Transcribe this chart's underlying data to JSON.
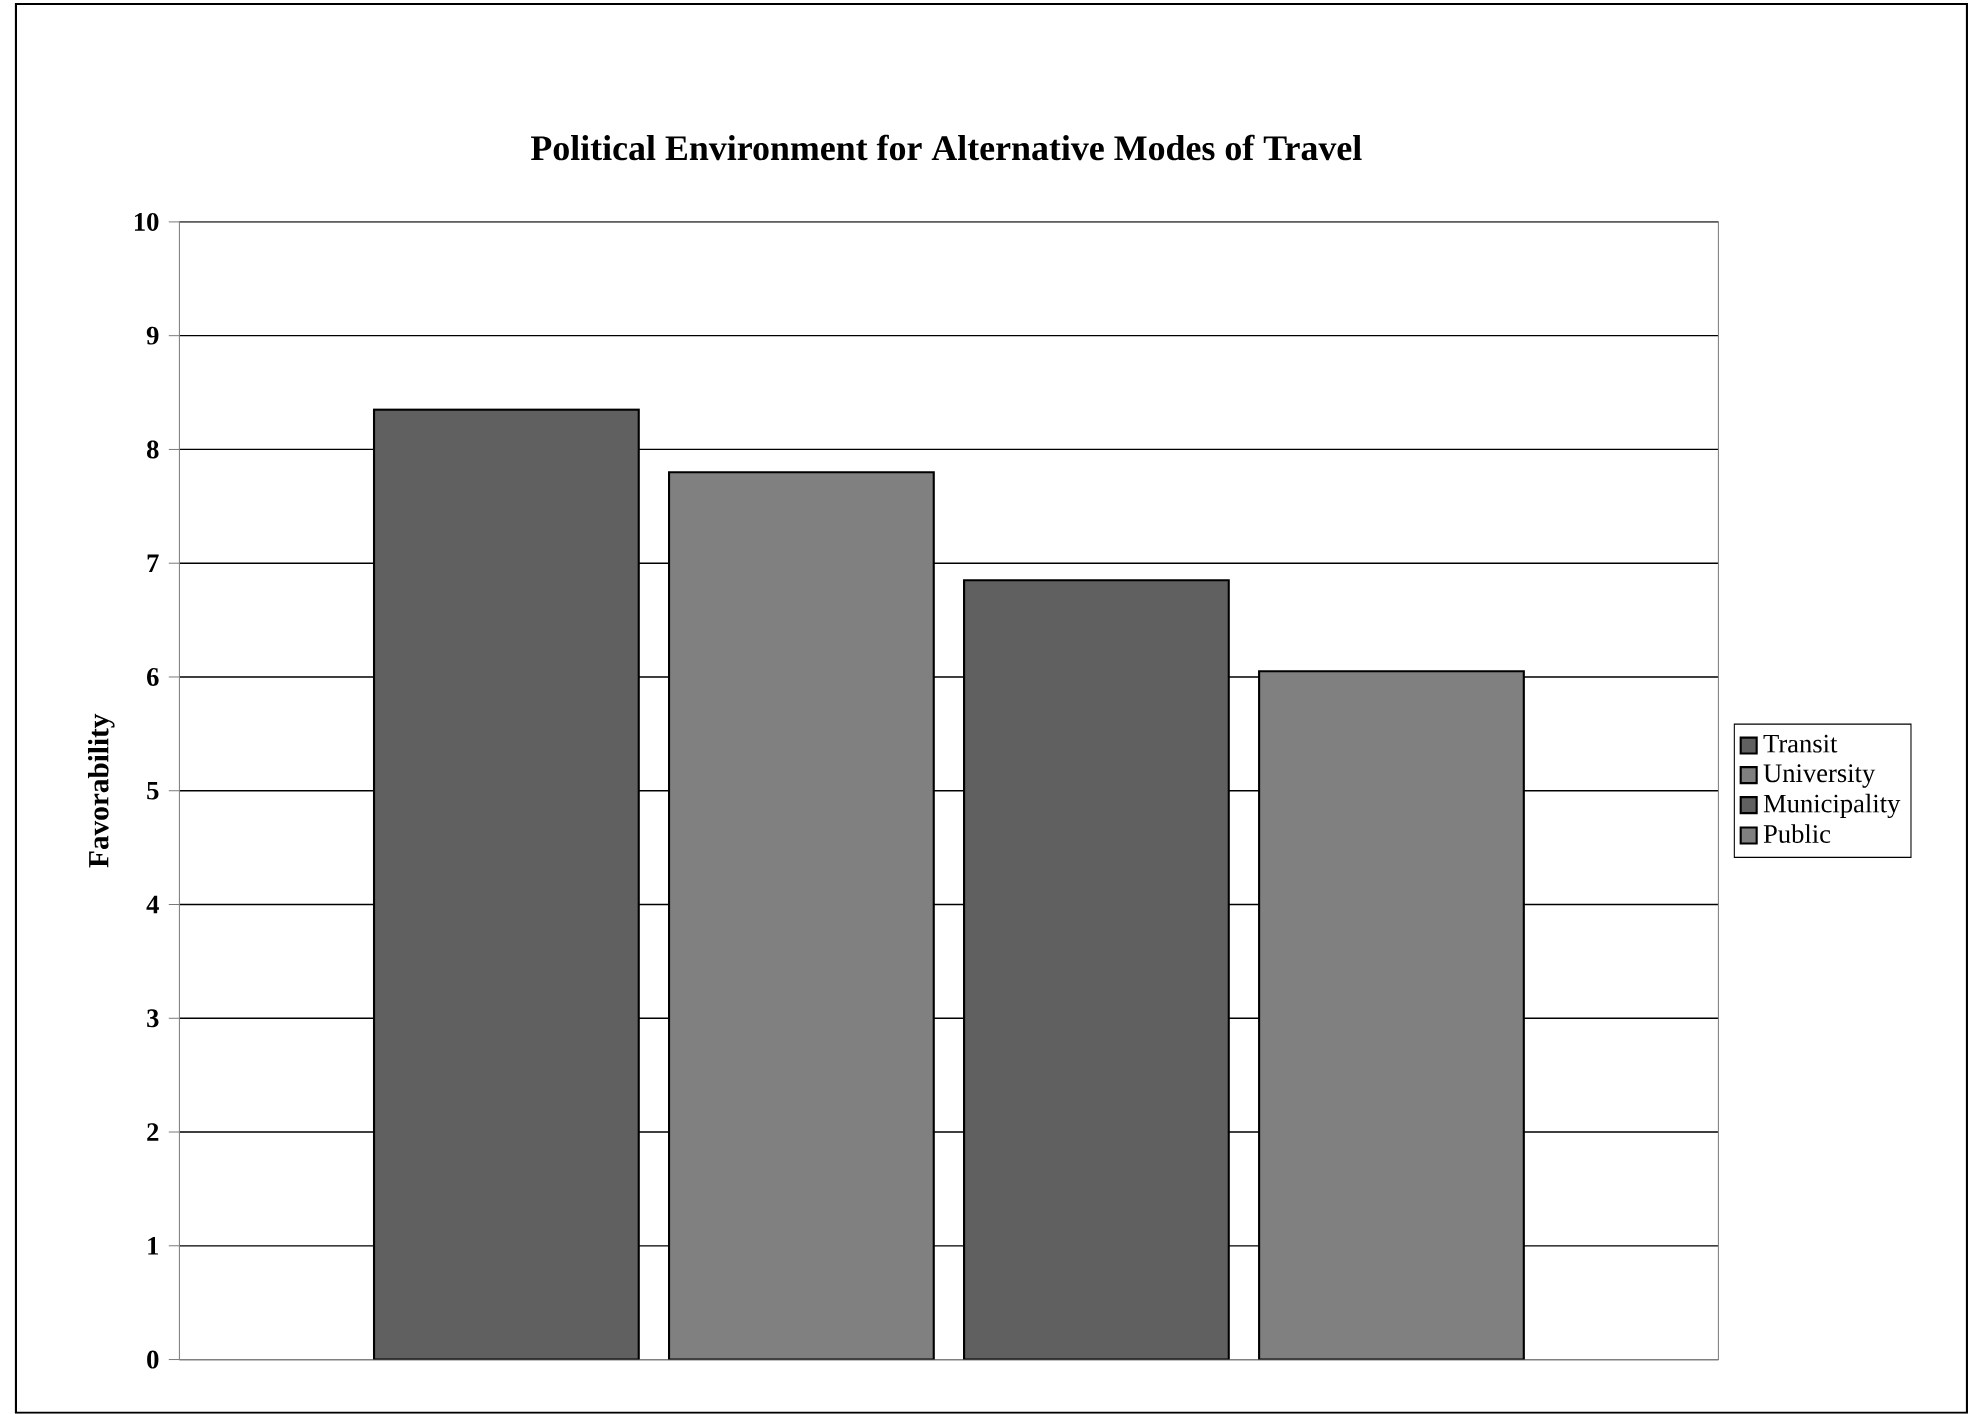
{
  "chart_data": {
    "type": "bar",
    "title": "Political Environment for Alternative Modes of Travel",
    "ylabel": "Favorability",
    "categories": [
      null
    ],
    "series": [
      {
        "name": "Transit",
        "color": "#606060",
        "values": [
          8.35
        ]
      },
      {
        "name": "University",
        "color": "#808080",
        "values": [
          7.8
        ]
      },
      {
        "name": "Municipality",
        "color": "#606060",
        "values": [
          6.85
        ]
      },
      {
        "name": "Public",
        "color": "#808080",
        "values": [
          6.05
        ]
      }
    ],
    "ylim": [
      0,
      10
    ],
    "yticks": [
      0,
      1,
      2,
      3,
      4,
      5,
      6,
      7,
      8,
      9,
      10
    ],
    "grid": "y",
    "legend": "right",
    "tick_labels": "y"
  }
}
